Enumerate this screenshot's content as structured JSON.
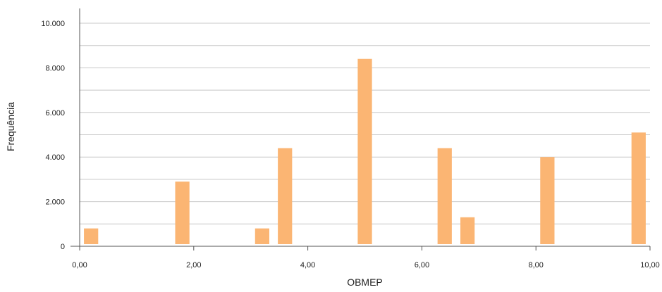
{
  "chart_data": {
    "type": "bar",
    "xlabel": "OBMEP",
    "ylabel": "Frequência",
    "xlim": [
      0,
      10
    ],
    "ylim": [
      0,
      10000
    ],
    "grid": "horizontal",
    "bar_color": "#FBB573",
    "x_ticks": [
      {
        "value": 0,
        "label": "0,00"
      },
      {
        "value": 2,
        "label": "2,00"
      },
      {
        "value": 4,
        "label": "4,00"
      },
      {
        "value": 6,
        "label": "6,00"
      },
      {
        "value": 8,
        "label": "8,00"
      },
      {
        "value": 10,
        "label": "10,00"
      }
    ],
    "y_ticks": [
      {
        "value": 0,
        "label": "0"
      },
      {
        "value": 2000,
        "label": "2.000"
      },
      {
        "value": 4000,
        "label": "4.000"
      },
      {
        "value": 6000,
        "label": "6.000"
      },
      {
        "value": 8000,
        "label": "8.000"
      },
      {
        "value": 10000,
        "label": "10.000"
      }
    ],
    "bars": [
      {
        "x": 0.2,
        "value": 800
      },
      {
        "x": 1.8,
        "value": 2900
      },
      {
        "x": 3.2,
        "value": 800
      },
      {
        "x": 3.6,
        "value": 4400
      },
      {
        "x": 5.0,
        "value": 8400
      },
      {
        "x": 6.4,
        "value": 4400
      },
      {
        "x": 6.8,
        "value": 1300
      },
      {
        "x": 8.2,
        "value": 4000
      },
      {
        "x": 9.8,
        "value": 5100
      }
    ],
    "bar_width": 0.25
  }
}
